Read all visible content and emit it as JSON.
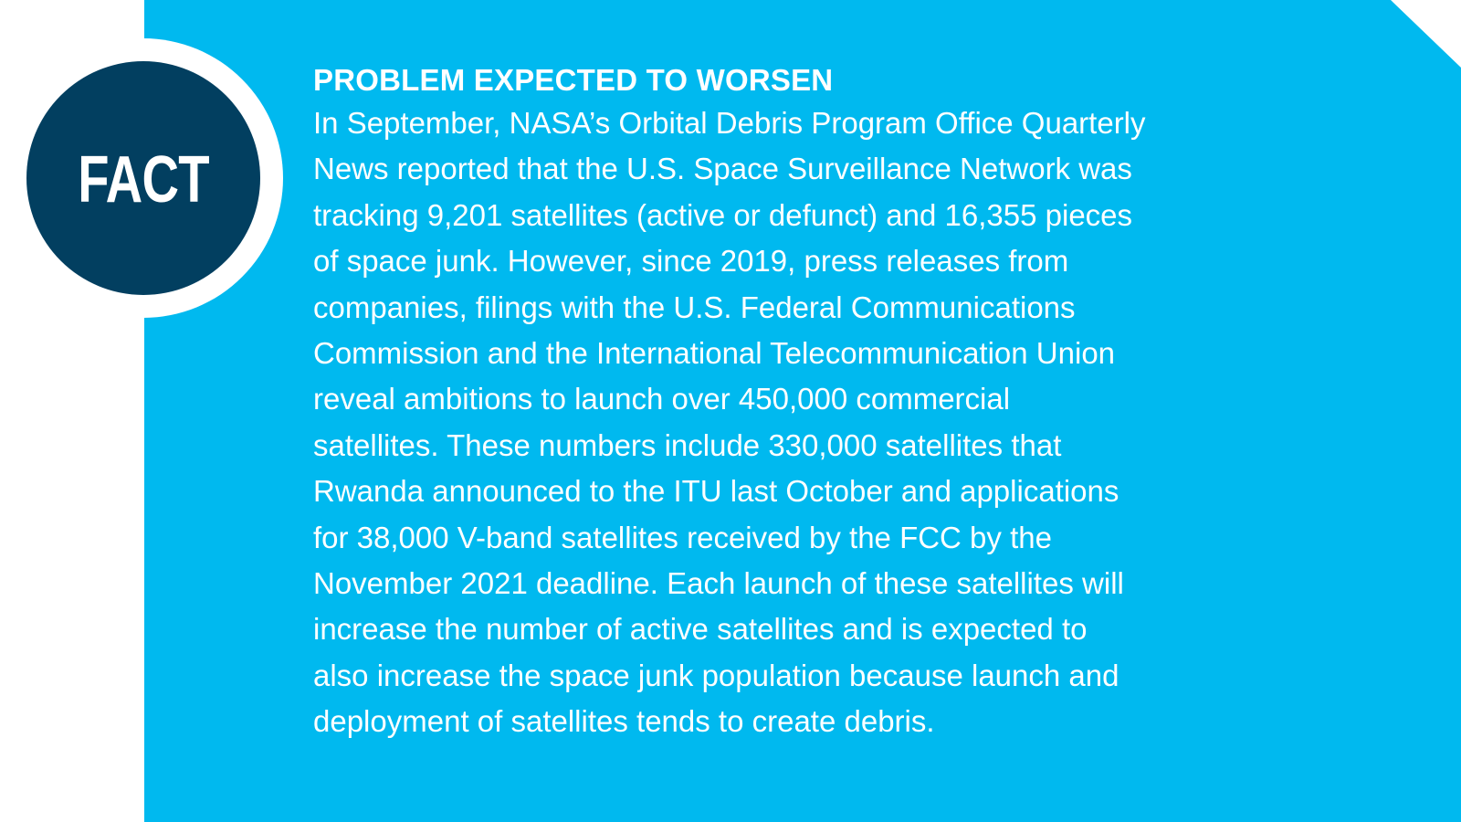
{
  "badge": {
    "label": "FACT"
  },
  "article": {
    "headline": "PROBLEM EXPECTED TO WORSEN",
    "body": "In September, NASA’s Orbital Debris Program Office Quarterly\nNews reported that the U.S. Space Surveillance Network was\ntracking 9,201 satellites (active or defunct) and 16,355 pieces\nof space junk. However, since 2019, press releases from\ncompanies, filings with the U.S. Federal Communications\nCommission and the International Telecommunication Union\nreveal ambitions to launch over 450,000 commercial\nsatellites. These numbers include 330,000 satellites that\nRwanda announced to the ITU last October and applications\nfor 38,000 V-band satellites received by the FCC by the\nNovember 2021 deadline. Each launch of these satellites will\nincrease the number of active satellites and is expected to\nalso increase the space junk population because launch and\ndeployment of satellites tends to create debris."
  },
  "colors": {
    "panel": "#00b9ef",
    "badge": "#023f60",
    "text": "#ffffff"
  }
}
